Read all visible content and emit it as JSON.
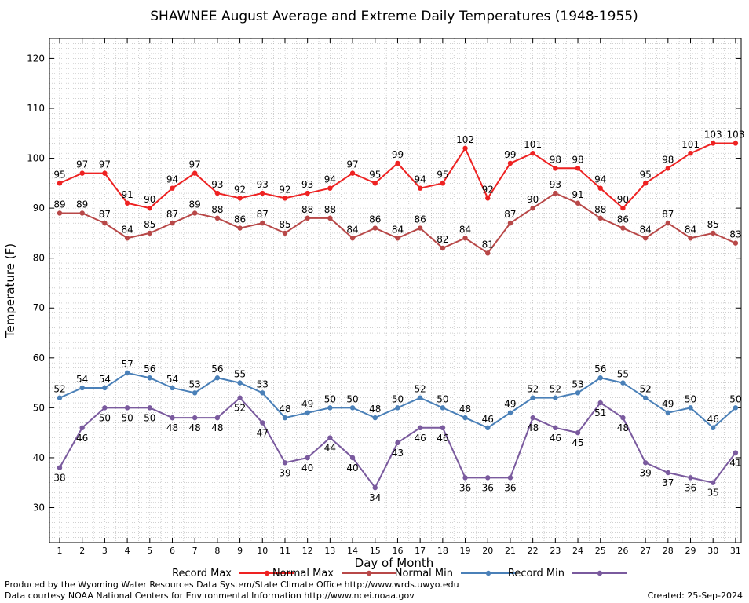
{
  "chart_data": {
    "type": "line",
    "title": "SHAWNEE August Average and Extreme Daily Temperatures (1948-1955)",
    "xlabel": "Day of Month",
    "ylabel": "Temperature (F)",
    "ylim": [
      23,
      124
    ],
    "yticks": [
      30,
      40,
      50,
      60,
      70,
      80,
      90,
      100,
      110,
      120
    ],
    "x": [
      1,
      2,
      3,
      4,
      5,
      6,
      7,
      8,
      9,
      10,
      11,
      12,
      13,
      14,
      15,
      16,
      17,
      18,
      19,
      20,
      21,
      22,
      23,
      24,
      25,
      26,
      27,
      28,
      29,
      30,
      31
    ],
    "grid": true,
    "legend_position": "bottom",
    "series": [
      {
        "name": "Record Max",
        "color": "#ee2222",
        "label_pos": "above",
        "values": [
          95,
          97,
          97,
          91,
          90,
          94,
          97,
          93,
          92,
          93,
          92,
          93,
          94,
          97,
          95,
          99,
          94,
          95,
          102,
          92,
          99,
          101,
          98,
          98,
          94,
          90,
          95,
          98,
          101,
          103,
          103
        ]
      },
      {
        "name": "Normal Max",
        "color": "#b84848",
        "label_pos": "above",
        "values": [
          89,
          89,
          87,
          84,
          85,
          87,
          89,
          88,
          86,
          87,
          85,
          88,
          88,
          84,
          86,
          84,
          86,
          82,
          84,
          81,
          87,
          90,
          93,
          91,
          88,
          86,
          84,
          87,
          84,
          85,
          83
        ]
      },
      {
        "name": "Normal Min",
        "color": "#4a80b8",
        "label_pos": "above",
        "values": [
          52,
          54,
          54,
          57,
          56,
          54,
          53,
          56,
          55,
          53,
          48,
          49,
          50,
          50,
          48,
          50,
          52,
          50,
          48,
          46,
          49,
          52,
          52,
          53,
          56,
          55,
          52,
          49,
          50,
          46,
          50
        ]
      },
      {
        "name": "Record Min",
        "color": "#7a5a9e",
        "label_pos": "below",
        "values": [
          38,
          46,
          50,
          50,
          50,
          48,
          48,
          48,
          52,
          47,
          39,
          40,
          44,
          40,
          34,
          43,
          46,
          46,
          36,
          36,
          36,
          48,
          46,
          45,
          51,
          48,
          39,
          37,
          36,
          35,
          41
        ]
      }
    ]
  },
  "footer": {
    "producer": "Produced by the Wyoming Water Resources Data System/State Climate Office http://www.wrds.uwyo.edu",
    "courtesy": "Data courtesy NOAA National Centers for Environmental Information http://www.ncei.noaa.gov",
    "created": "Created:  25-Sep-2024"
  }
}
